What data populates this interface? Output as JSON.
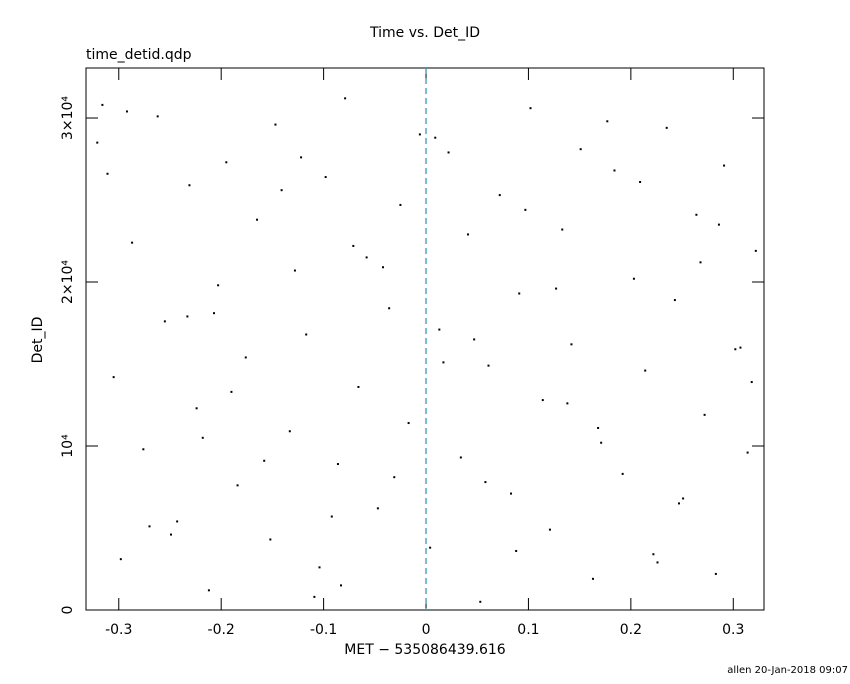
{
  "chart_data": {
    "type": "scatter",
    "title": "Time vs. Det_ID",
    "subtitle": "time_detid.qdp",
    "x_label": "MET − 535086439.616",
    "y_label": "Det_ID",
    "footer": "allen 20-Jan-2018 09:07",
    "xlim": [
      -0.332,
      0.33
    ],
    "ylim": [
      0,
      33050
    ],
    "xticks": [
      -0.3,
      -0.2,
      -0.1,
      0,
      0.1,
      0.2,
      0.3
    ],
    "yticks": [
      0,
      {
        "value": 10000,
        "label": "10⁴"
      },
      {
        "value": 20000,
        "label": "2×10⁴"
      },
      {
        "value": 30000,
        "label": "3×10⁴"
      }
    ],
    "vline": 0,
    "vline_color": "#3a9ab0",
    "color": "#000000",
    "series": [
      {
        "x": [
          -0.321,
          -0.305,
          -0.298,
          -0.287,
          -0.276,
          -0.262,
          -0.255,
          -0.243,
          -0.231,
          -0.224,
          -0.212,
          -0.203,
          -0.195,
          -0.184,
          -0.176,
          -0.165,
          -0.152,
          -0.147,
          -0.133,
          -0.128,
          -0.117,
          -0.104,
          -0.098,
          -0.086,
          -0.079,
          -0.066,
          -0.058,
          -0.047,
          -0.036,
          -0.025,
          -0.017,
          -0.006,
          0.004,
          0.013,
          0.022,
          0.034,
          0.041,
          0.053,
          0.061,
          0.072,
          0.083,
          0.091,
          0.102,
          0.114,
          0.121,
          0.133,
          0.142,
          0.151,
          0.163,
          0.171,
          0.184,
          0.192,
          0.203,
          0.214,
          0.222,
          0.235,
          0.243,
          0.251,
          0.264,
          0.272,
          0.283,
          0.291,
          0.302,
          0.314,
          0.322,
          -0.316,
          -0.27,
          -0.233,
          -0.19,
          -0.141,
          -0.109,
          -0.071,
          -0.031,
          0.009,
          0.047,
          0.088,
          0.127,
          0.168,
          0.209,
          0.247,
          0.286,
          0.318,
          -0.292,
          -0.249,
          -0.207,
          -0.158,
          -0.122,
          -0.083,
          -0.042,
          0.017,
          0.058,
          0.097,
          0.138,
          0.177,
          0.226,
          0.268,
          0.307,
          -0.311,
          -0.218,
          -0.092
        ],
        "values": [
          28500,
          14200,
          3100,
          22400,
          9800,
          30100,
          17600,
          5400,
          25900,
          12300,
          1200,
          19800,
          27300,
          7600,
          15400,
          23800,
          4300,
          29600,
          10900,
          20700,
          16800,
          2600,
          26400,
          8900,
          31200,
          13600,
          21500,
          6200,
          18400,
          24700,
          11400,
          29000,
          3800,
          17100,
          27900,
          9300,
          22900,
          500,
          14900,
          25300,
          7100,
          19300,
          30600,
          12800,
          4900,
          23200,
          16200,
          28100,
          1900,
          10200,
          26800,
          8300,
          20200,
          14600,
          3400,
          29400,
          18900,
          6800,
          24100,
          11900,
          2200,
          27100,
          15900,
          9600,
          21900,
          30800,
          5100,
          17900,
          13300,
          25600,
          800,
          22200,
          8100,
          28800,
          16500,
          3600,
          19600,
          11100,
          26100,
          6500,
          23500,
          13900,
          30400,
          4600,
          18100,
          9100,
          27600,
          1500,
          20900,
          15100,
          7800,
          24400,
          12600,
          29800,
          2900,
          21200,
          16000,
          26600,
          10500,
          5700
        ]
      }
    ]
  }
}
